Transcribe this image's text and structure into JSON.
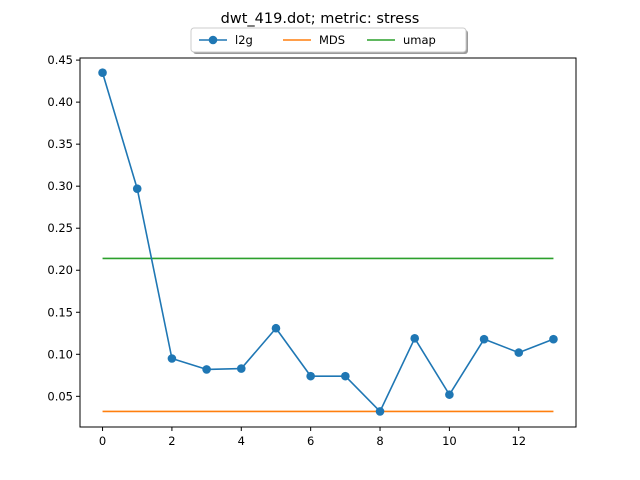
{
  "chart_data": {
    "type": "line",
    "title": "dwt_419.dot; metric: stress",
    "xlabel": "",
    "ylabel": "",
    "xlim": [
      -0.65,
      13.65
    ],
    "ylim": [
      0.0135,
      0.4525
    ],
    "xticks": [
      0,
      2,
      4,
      6,
      8,
      10,
      12
    ],
    "xtick_labels": [
      "0",
      "2",
      "4",
      "6",
      "8",
      "10",
      "12"
    ],
    "yticks": [
      0.05,
      0.1,
      0.15,
      0.2,
      0.25,
      0.3,
      0.35,
      0.4,
      0.45
    ],
    "ytick_labels": [
      "0.05",
      "0.10",
      "0.15",
      "0.20",
      "0.25",
      "0.30",
      "0.35",
      "0.40",
      "0.45"
    ],
    "grid": false,
    "legend_position": "top-center",
    "series": [
      {
        "name": "l2g",
        "color": "#1f77b4",
        "marker": "circle",
        "x": [
          0,
          1,
          2,
          3,
          4,
          5,
          6,
          7,
          8,
          9,
          10,
          11,
          12,
          13
        ],
        "y": [
          0.435,
          0.297,
          0.095,
          0.082,
          0.083,
          0.131,
          0.074,
          0.074,
          0.032,
          0.119,
          0.052,
          0.118,
          0.102,
          0.118
        ]
      },
      {
        "name": "MDS",
        "color": "#ff7f0e",
        "marker": "none",
        "x": [
          0,
          13
        ],
        "y": [
          0.032,
          0.032
        ]
      },
      {
        "name": "umap",
        "color": "#2ca02c",
        "marker": "none",
        "x": [
          0,
          13
        ],
        "y": [
          0.214,
          0.214
        ]
      }
    ]
  }
}
